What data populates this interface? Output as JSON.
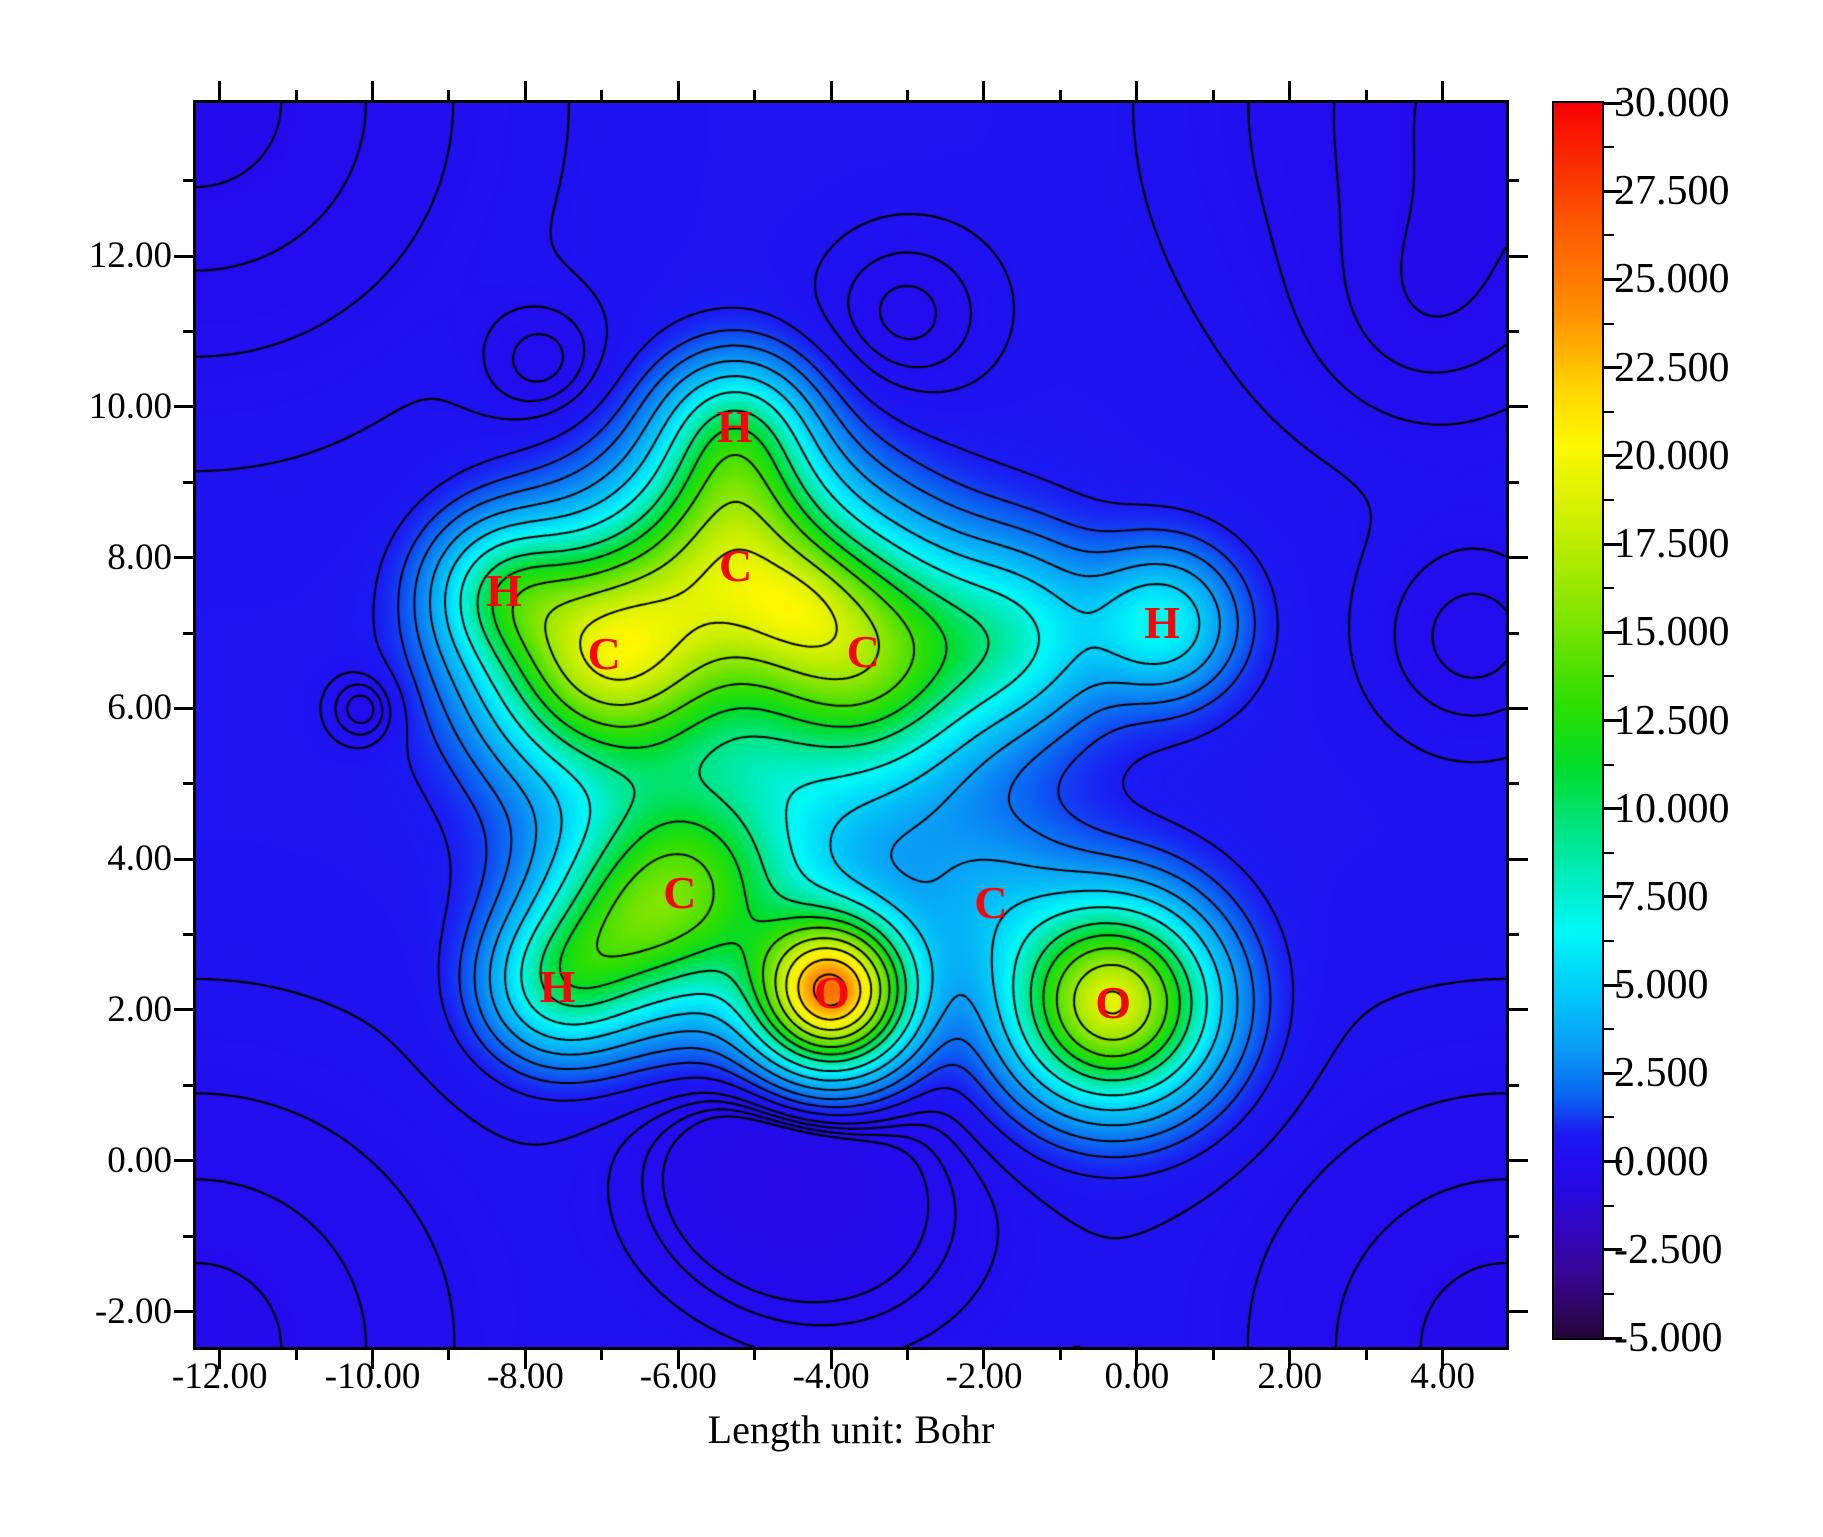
{
  "chart_data": {
    "type": "heatmap",
    "subtype": "filled-contour-map",
    "title": "",
    "xlabel": "Length unit: Bohr",
    "ylabel": "",
    "grid": false,
    "x_range": [
      -12.31,
      4.83
    ],
    "y_range": [
      -2.47,
      14.03
    ],
    "x_tick_values": [
      -12,
      -10,
      -8,
      -6,
      -4,
      -2,
      0,
      2,
      4
    ],
    "x_tick_labels": [
      "-12.00",
      "-10.00",
      "-8.00",
      "-6.00",
      "-4.00",
      "-2.00",
      "0.00",
      "2.00",
      "4.00"
    ],
    "x_minor_ticks": [
      -11,
      -9,
      -7,
      -5,
      -3,
      -1,
      1,
      3
    ],
    "y_tick_values": [
      12,
      10,
      8,
      6,
      4,
      2,
      0,
      -2
    ],
    "y_tick_labels": [
      "12.00",
      "10.00",
      "8.00",
      "6.00",
      "4.00",
      "2.00",
      "0.00",
      "-2.00"
    ],
    "y_minor_ticks": [
      13,
      11,
      9,
      7,
      5,
      3,
      1,
      -1
    ],
    "colorbar": {
      "min": -5.0,
      "max": 30.0,
      "major_step": 2.5,
      "minor_step": 1.25,
      "tick_values": [
        30,
        27.5,
        25,
        22.5,
        20,
        17.5,
        15,
        12.5,
        10,
        7.5,
        5,
        2.5,
        0,
        -2.5,
        -5
      ],
      "tick_labels": [
        "30.000",
        "27.500",
        "25.000",
        "22.500",
        "20.000",
        "17.500",
        "15.000",
        "12.500",
        "10.000",
        "7.500",
        "5.000",
        "2.500",
        "0.000",
        "-2.500",
        "-5.000"
      ],
      "position": "right"
    },
    "colormap": [
      [
        -5.0,
        "#230638"
      ],
      [
        -4.2,
        "#2e0660"
      ],
      [
        -3.2,
        "#370795"
      ],
      [
        -2.0,
        "#3206bb"
      ],
      [
        -0.8,
        "#2609e2"
      ],
      [
        0.0,
        "#230cef"
      ],
      [
        0.8,
        "#1b1af2"
      ],
      [
        1.8,
        "#0b62f2"
      ],
      [
        3.2,
        "#0a9cf5"
      ],
      [
        5.0,
        "#00d0f8"
      ],
      [
        6.5,
        "#00f8f8"
      ],
      [
        7.8,
        "#00eec8"
      ],
      [
        9.5,
        "#00e47e"
      ],
      [
        11.2,
        "#00dd2a"
      ],
      [
        13.0,
        "#2ede00"
      ],
      [
        15.5,
        "#83e500"
      ],
      [
        18.0,
        "#c8ee00"
      ],
      [
        20.3,
        "#fcf800"
      ],
      [
        21.8,
        "#ffd800"
      ],
      [
        24.0,
        "#ff9000"
      ],
      [
        26.5,
        "#fc5a00"
      ],
      [
        30.0,
        "#f80000"
      ]
    ],
    "atom_label_color": "#f5070c",
    "atoms": [
      {
        "element": "H",
        "x": -5.26,
        "y": 9.73
      },
      {
        "element": "C",
        "x": -5.25,
        "y": 7.89
      },
      {
        "element": "C",
        "x": -3.58,
        "y": 6.75
      },
      {
        "element": "H",
        "x": 0.33,
        "y": 7.13
      },
      {
        "element": "C",
        "x": -6.97,
        "y": 6.72
      },
      {
        "element": "H",
        "x": -8.28,
        "y": 7.56
      },
      {
        "element": "C",
        "x": -5.98,
        "y": 3.55
      },
      {
        "element": "C",
        "x": -1.91,
        "y": 3.42
      },
      {
        "element": "O",
        "x": -3.99,
        "y": 2.23
      },
      {
        "element": "O",
        "x": -0.31,
        "y": 2.09
      },
      {
        "element": "H",
        "x": -7.58,
        "y": 2.31
      }
    ],
    "contours": {
      "line_color": "#000000",
      "solid_levels": [
        0.8,
        1.4,
        2.2,
        3.4,
        5.0,
        7.0,
        9.4,
        11.4,
        13.6,
        16.2,
        18.8,
        21.6,
        24.4,
        27.2
      ],
      "dashed_levels": [
        0.35,
        0.15,
        -0.02,
        -0.15
      ]
    },
    "field_offset": 0.55,
    "field_sources": [
      [
        -5.26,
        9.73,
        6.5,
        0.62
      ],
      [
        -5.25,
        7.89,
        12.0,
        1.0
      ],
      [
        -3.58,
        6.75,
        12.0,
        1.0
      ],
      [
        0.33,
        7.13,
        6.0,
        0.62
      ],
      [
        -6.97,
        6.72,
        16.5,
        1.0
      ],
      [
        -8.28,
        7.56,
        6.5,
        0.62
      ],
      [
        -5.98,
        3.55,
        12.0,
        1.0
      ],
      [
        -1.91,
        3.42,
        2.5,
        0.8
      ],
      [
        -3.99,
        2.23,
        24.0,
        0.66
      ],
      [
        -0.31,
        2.09,
        18.5,
        0.85
      ],
      [
        -7.58,
        2.31,
        6.5,
        0.62
      ],
      [
        -4.4,
        7.35,
        2.5,
        0.55
      ],
      [
        -4.7,
        5.6,
        3.5,
        1.7
      ],
      [
        -1.6,
        6.95,
        5.5,
        0.8
      ],
      [
        -5.25,
        8.85,
        4.0,
        0.7
      ],
      [
        -6.9,
        2.9,
        4.5,
        0.7
      ],
      [
        3.7,
        11.0,
        -0.25,
        1.1
      ],
      [
        4.4,
        6.9,
        -0.6,
        1.0
      ],
      [
        -7.75,
        10.56,
        -0.55,
        0.6
      ],
      [
        -5.0,
        0.1,
        -0.75,
        1.2
      ],
      [
        -3.75,
        -0.72,
        -0.7,
        1.6
      ],
      [
        -10.1,
        6.0,
        -0.75,
        0.35
      ],
      [
        -3.03,
        11.2,
        -0.62,
        0.85
      ],
      [
        -12.31,
        14.03,
        -0.75,
        3.0
      ],
      [
        4.83,
        14.03,
        -0.75,
        3.0
      ],
      [
        -12.31,
        -2.47,
        -0.75,
        3.0
      ],
      [
        4.83,
        -2.47,
        -0.75,
        3.0
      ]
    ]
  }
}
